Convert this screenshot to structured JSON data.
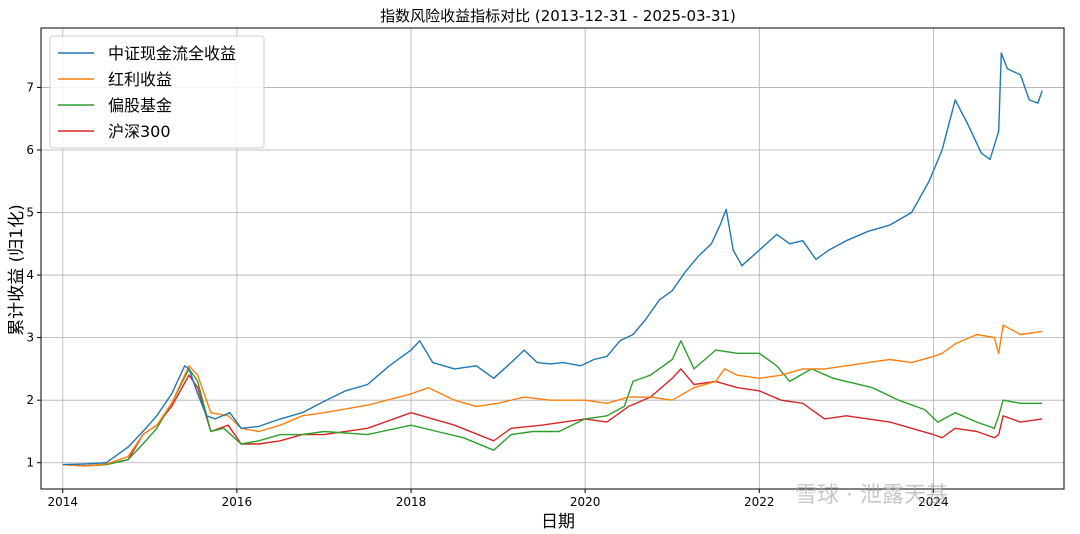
{
  "chart_data": {
    "type": "line",
    "title": "指数风险收益指标对比 (2013-12-31 - 2025-03-31)",
    "xlabel": "日期",
    "ylabel": "累计收益 (归1化)",
    "x_ticks": [
      "2014",
      "2016",
      "2018",
      "2020",
      "2022",
      "2024"
    ],
    "y_ticks": [
      1,
      2,
      3,
      4,
      5,
      6,
      7
    ],
    "xlim": [
      2013.75,
      2025.5
    ],
    "ylim": [
      0.58,
      7.95
    ],
    "grid": true,
    "legend_position": "top-left",
    "x_units": "year",
    "series": [
      {
        "name": "中证现金流全收益",
        "color": "#1f77b4",
        "x": [
          2014.0,
          2014.25,
          2014.5,
          2014.75,
          2014.92,
          2015.08,
          2015.25,
          2015.4,
          2015.45,
          2015.55,
          2015.65,
          2015.75,
          2015.92,
          2016.05,
          2016.25,
          2016.5,
          2016.75,
          2017.0,
          2017.25,
          2017.5,
          2017.75,
          2018.0,
          2018.1,
          2018.25,
          2018.5,
          2018.75,
          2018.95,
          2019.15,
          2019.3,
          2019.45,
          2019.6,
          2019.75,
          2019.95,
          2020.1,
          2020.25,
          2020.4,
          2020.55,
          2020.7,
          2020.85,
          2021.0,
          2021.15,
          2021.3,
          2021.45,
          2021.55,
          2021.62,
          2021.7,
          2021.8,
          2022.0,
          2022.2,
          2022.35,
          2022.5,
          2022.65,
          2022.8,
          2023.0,
          2023.25,
          2023.5,
          2023.75,
          2023.95,
          2024.1,
          2024.25,
          2024.4,
          2024.55,
          2024.65,
          2024.75,
          2024.78,
          2024.85,
          2025.0,
          2025.1,
          2025.2,
          2025.25
        ],
        "values": [
          0.97,
          0.98,
          1.0,
          1.25,
          1.5,
          1.75,
          2.1,
          2.55,
          2.5,
          2.1,
          1.75,
          1.7,
          1.8,
          1.55,
          1.58,
          1.7,
          1.8,
          1.98,
          2.15,
          2.25,
          2.55,
          2.8,
          2.95,
          2.6,
          2.5,
          2.55,
          2.35,
          2.6,
          2.8,
          2.6,
          2.58,
          2.6,
          2.55,
          2.65,
          2.7,
          2.95,
          3.05,
          3.3,
          3.6,
          3.75,
          4.05,
          4.3,
          4.5,
          4.8,
          5.05,
          4.4,
          4.15,
          4.4,
          4.65,
          4.5,
          4.55,
          4.25,
          4.4,
          4.55,
          4.7,
          4.8,
          5.0,
          5.5,
          6.0,
          6.8,
          6.4,
          5.95,
          5.85,
          6.3,
          7.55,
          7.3,
          7.2,
          6.8,
          6.75,
          6.95
        ]
      },
      {
        "name": "红利收益",
        "color": "#ff7f0e",
        "x": [
          2014.0,
          2014.25,
          2014.5,
          2014.75,
          2014.92,
          2015.08,
          2015.25,
          2015.45,
          2015.55,
          2015.7,
          2015.9,
          2016.05,
          2016.25,
          2016.5,
          2016.75,
          2017.0,
          2017.5,
          2018.0,
          2018.2,
          2018.5,
          2018.75,
          2019.0,
          2019.3,
          2019.6,
          2020.0,
          2020.25,
          2020.5,
          2020.75,
          2021.0,
          2021.25,
          2021.5,
          2021.6,
          2021.75,
          2022.0,
          2022.25,
          2022.5,
          2022.75,
          2023.0,
          2023.25,
          2023.5,
          2023.75,
          2024.0,
          2024.1,
          2024.25,
          2024.5,
          2024.7,
          2024.75,
          2024.8,
          2025.0,
          2025.25
        ],
        "values": [
          0.97,
          0.95,
          0.98,
          1.1,
          1.45,
          1.6,
          1.95,
          2.55,
          2.4,
          1.8,
          1.75,
          1.55,
          1.5,
          1.6,
          1.75,
          1.8,
          1.92,
          2.1,
          2.2,
          2.0,
          1.9,
          1.95,
          2.05,
          2.0,
          2.0,
          1.95,
          2.05,
          2.05,
          2.0,
          2.2,
          2.3,
          2.5,
          2.4,
          2.35,
          2.4,
          2.5,
          2.5,
          2.55,
          2.6,
          2.65,
          2.6,
          2.7,
          2.75,
          2.9,
          3.05,
          3.0,
          2.75,
          3.2,
          3.05,
          3.1
        ]
      },
      {
        "name": "偏股基金",
        "color": "#2ca02c",
        "x": [
          2014.0,
          2014.25,
          2014.5,
          2014.75,
          2014.92,
          2015.08,
          2015.25,
          2015.45,
          2015.55,
          2015.7,
          2015.85,
          2016.05,
          2016.25,
          2016.5,
          2016.75,
          2017.0,
          2017.5,
          2018.0,
          2018.3,
          2018.6,
          2018.95,
          2019.15,
          2019.4,
          2019.7,
          2020.0,
          2020.25,
          2020.45,
          2020.55,
          2020.75,
          2021.0,
          2021.1,
          2021.25,
          2021.5,
          2021.75,
          2022.0,
          2022.2,
          2022.35,
          2022.6,
          2022.85,
          2023.0,
          2023.3,
          2023.6,
          2023.9,
          2024.05,
          2024.25,
          2024.5,
          2024.7,
          2024.75,
          2024.8,
          2025.0,
          2025.25
        ],
        "values": [
          0.97,
          0.95,
          0.97,
          1.05,
          1.3,
          1.55,
          1.95,
          2.5,
          2.3,
          1.5,
          1.55,
          1.3,
          1.35,
          1.45,
          1.45,
          1.5,
          1.45,
          1.6,
          1.5,
          1.4,
          1.2,
          1.45,
          1.5,
          1.5,
          1.7,
          1.75,
          1.9,
          2.3,
          2.4,
          2.65,
          2.95,
          2.5,
          2.8,
          2.75,
          2.75,
          2.55,
          2.3,
          2.5,
          2.35,
          2.3,
          2.2,
          2.0,
          1.85,
          1.65,
          1.8,
          1.65,
          1.55,
          1.75,
          2.0,
          1.95,
          1.95
        ]
      },
      {
        "name": "沪深300",
        "color": "#d62728",
        "x": [
          2014.0,
          2014.25,
          2014.5,
          2014.75,
          2014.92,
          2015.08,
          2015.25,
          2015.45,
          2015.55,
          2015.7,
          2015.9,
          2016.05,
          2016.25,
          2016.5,
          2016.75,
          2017.0,
          2017.5,
          2018.0,
          2018.25,
          2018.5,
          2018.95,
          2019.15,
          2019.5,
          2019.75,
          2020.0,
          2020.25,
          2020.5,
          2020.75,
          2021.0,
          2021.1,
          2021.25,
          2021.5,
          2021.75,
          2022.0,
          2022.25,
          2022.5,
          2022.75,
          2023.0,
          2023.25,
          2023.5,
          2023.75,
          2024.0,
          2024.1,
          2024.25,
          2024.5,
          2024.7,
          2024.75,
          2024.8,
          2025.0,
          2025.25
        ],
        "values": [
          0.97,
          0.95,
          0.97,
          1.05,
          1.45,
          1.6,
          1.9,
          2.4,
          2.2,
          1.5,
          1.6,
          1.3,
          1.3,
          1.35,
          1.45,
          1.45,
          1.55,
          1.8,
          1.7,
          1.6,
          1.35,
          1.55,
          1.6,
          1.65,
          1.7,
          1.65,
          1.9,
          2.05,
          2.35,
          2.5,
          2.25,
          2.3,
          2.2,
          2.15,
          2.0,
          1.95,
          1.7,
          1.75,
          1.7,
          1.65,
          1.55,
          1.45,
          1.4,
          1.55,
          1.5,
          1.4,
          1.45,
          1.75,
          1.65,
          1.7
        ]
      }
    ]
  },
  "watermark": "雪球 · 泄露天基"
}
